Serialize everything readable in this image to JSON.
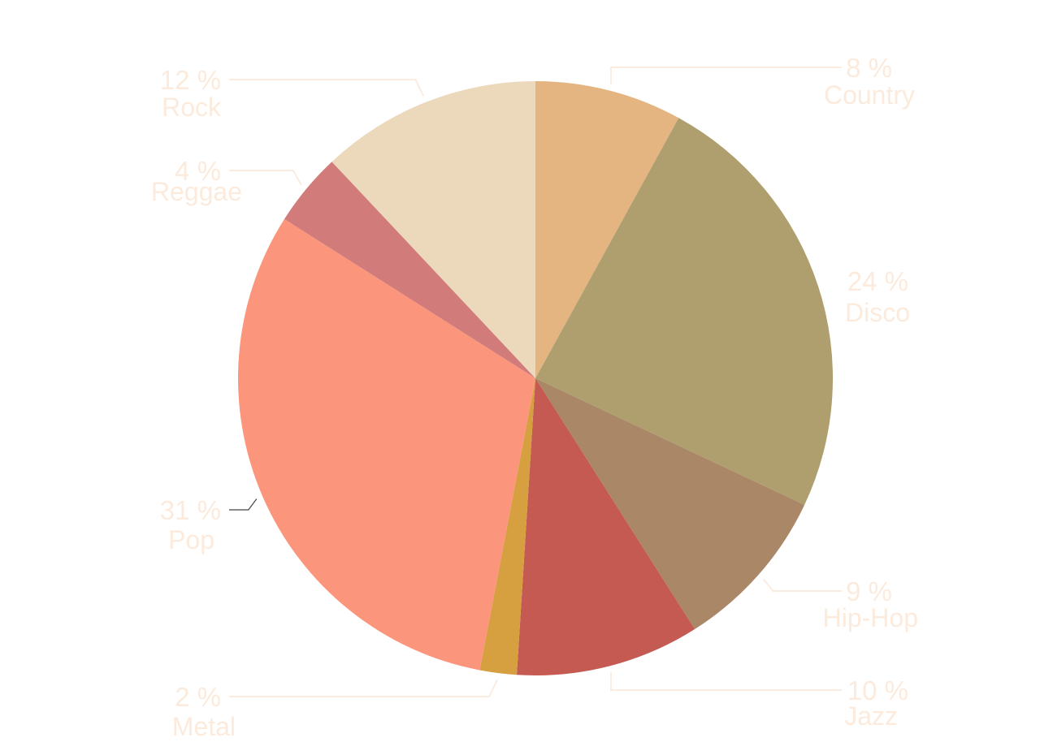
{
  "chart_data": {
    "type": "pie",
    "title": "",
    "slices": [
      {
        "name": "Country",
        "value": 8,
        "label": "8 %",
        "color": "#e4b580"
      },
      {
        "name": "Disco",
        "value": 24,
        "label": "24 %",
        "color": "#af9f6f"
      },
      {
        "name": "Hip-Hop",
        "value": 9,
        "label": "9 %",
        "color": "#a98767"
      },
      {
        "name": "Jazz",
        "value": 10,
        "label": "10 %",
        "color": "#c45a51"
      },
      {
        "name": "Metal",
        "value": 2,
        "label": "2 %",
        "color": "#d69f40"
      },
      {
        "name": "Pop",
        "value": 31,
        "label": "31 %",
        "color": "#fb957b"
      },
      {
        "name": "Reggae",
        "value": 4,
        "label": "4 %",
        "color": "#d27b7b"
      },
      {
        "name": "Rock",
        "value": 12,
        "label": "12 %",
        "color": "#ecd8bb"
      }
    ],
    "start_angle": "top",
    "direction": "clockwise",
    "legend": "none"
  }
}
